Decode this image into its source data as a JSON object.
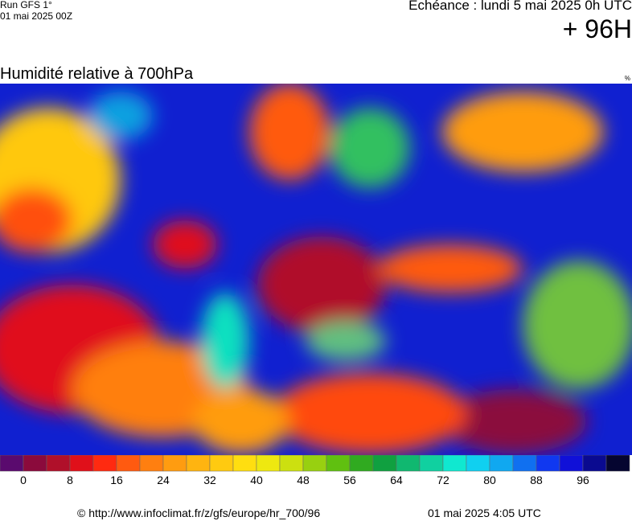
{
  "header": {
    "run": "Run GFS 1°",
    "run_date": "01 mai 2025 00Z",
    "valid": "Echéance : lundi 5 mai 2025 0h UTC",
    "lead": "+ 96H",
    "title": "Humidité relative à 700hPa",
    "unit": "%"
  },
  "colorbar": {
    "colors": [
      "#5a0a6e",
      "#8b0a3c",
      "#b0102a",
      "#e0101a",
      "#ff2a10",
      "#ff5a10",
      "#ff7f10",
      "#ff9c10",
      "#ffb410",
      "#ffca10",
      "#ffde10",
      "#eee810",
      "#cce010",
      "#98d010",
      "#60c010",
      "#30aa20",
      "#10a040",
      "#10b870",
      "#10d0a0",
      "#10e8d0",
      "#10d0f0",
      "#10a8f0",
      "#1070f0",
      "#1038f0",
      "#1010d8",
      "#0a0a90",
      "#050530"
    ],
    "ticks": [
      0,
      8,
      16,
      24,
      32,
      40,
      48,
      56,
      64,
      72,
      80,
      88,
      96
    ]
  },
  "footer": {
    "source": "© http://www.infoclimat.fr/z/gfs/europe/hr_700/96",
    "generated": "01 mai 2025  4:05 UTC"
  }
}
